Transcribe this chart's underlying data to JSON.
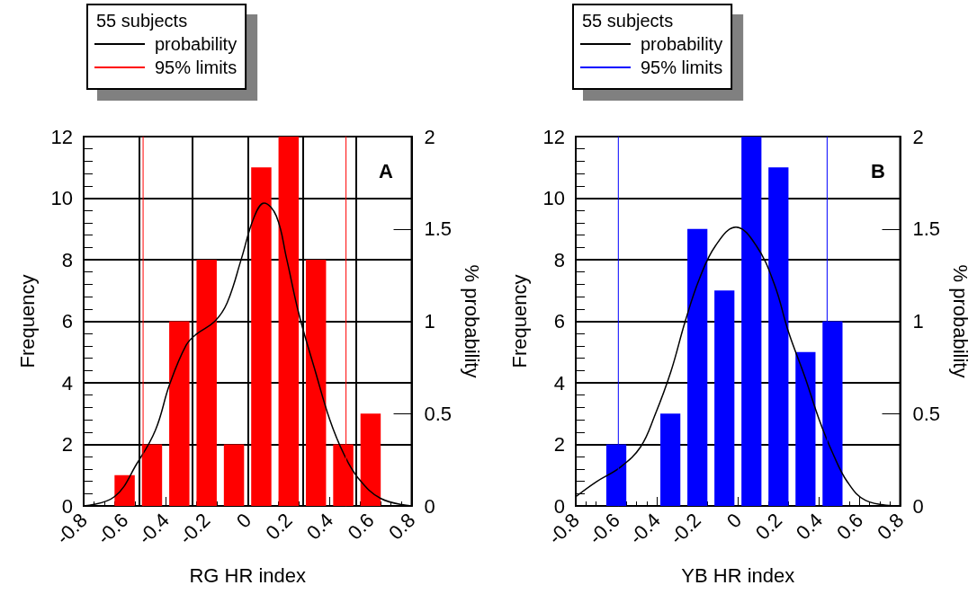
{
  "chart_data": [
    {
      "type": "histogram",
      "title": "A",
      "xlabel": "RG HR index",
      "ylabel": "Frequency",
      "y2label": "% probability",
      "annotations": [
        "55 subjects"
      ],
      "bins": [
        -0.6667,
        -0.5333,
        -0.4,
        -0.2667,
        -0.1333,
        0,
        0.1333,
        0.2667,
        0.4,
        0.5333,
        0.6667
      ],
      "values": [
        1,
        2,
        6,
        8,
        2,
        11,
        12,
        8,
        2,
        3
      ],
      "color": "#ff0000",
      "series": [
        {
          "type": "line",
          "name": "probability",
          "axis": "y2",
          "color": "#000000",
          "x": [
            -0.8,
            -0.65,
            -0.54,
            -0.45,
            -0.38,
            -0.3,
            -0.25,
            -0.16,
            -0.1,
            -0.03,
            0.03,
            0.08,
            0.14,
            0.19,
            0.25,
            0.33,
            0.4,
            0.47,
            0.54,
            0.65,
            0.8
          ],
          "values": [
            0,
            0.05,
            0.23,
            0.41,
            0.66,
            0.87,
            0.93,
            1.0,
            1.1,
            1.34,
            1.56,
            1.64,
            1.57,
            1.34,
            1.04,
            0.73,
            0.47,
            0.28,
            0.15,
            0.04,
            0
          ]
        },
        {
          "type": "line",
          "name": "95% limits",
          "color": "#ff0000",
          "x": [
            -0.51,
            -0.51,
            null,
            0.48,
            0.48
          ],
          "values": [
            0,
            12,
            null,
            12,
            0
          ]
        }
      ],
      "ref_lines": [
        {
          "axis": "x",
          "value": -0.53,
          "color": "#000000"
        },
        {
          "axis": "x",
          "value": -0.27,
          "color": "#000000"
        },
        {
          "axis": "x",
          "value": 0,
          "color": "#000000"
        },
        {
          "axis": "x",
          "value": 0.27,
          "color": "#000000"
        },
        {
          "axis": "x",
          "value": 0.53,
          "color": "#000000"
        }
      ],
      "xlim": [
        -0.8,
        0.8
      ],
      "xticks": [
        -0.8,
        -0.6,
        -0.4,
        -0.2,
        0,
        0.2,
        0.4,
        0.6,
        0.8
      ],
      "ylim": [
        0,
        12
      ],
      "yticks": [
        0,
        2,
        4,
        6,
        8,
        10,
        12
      ],
      "y2lim": [
        0,
        2
      ],
      "y2ticks": [
        0,
        0.5,
        1,
        1.5,
        2
      ],
      "grid": "y",
      "legend": "top left",
      "marker": "none",
      "line_style": "solid"
    },
    {
      "type": "histogram",
      "title": "B",
      "xlabel": "YB HR index",
      "ylabel": "Frequency",
      "y2label": "% probability",
      "annotations": [
        "55 subjects"
      ],
      "bins": [
        -0.6667,
        -0.5333,
        -0.4,
        -0.2667,
        -0.1333,
        0,
        0.1333,
        0.2667,
        0.4,
        0.5333
      ],
      "values": [
        2,
        0,
        3,
        9,
        7,
        12,
        11,
        5,
        6
      ],
      "color": "#0000ff",
      "series": [
        {
          "type": "line",
          "name": "probability",
          "axis": "y2",
          "color": "#000000",
          "x": [
            -0.8,
            -0.7,
            -0.58,
            -0.48,
            -0.41,
            -0.33,
            -0.26,
            -0.19,
            -0.11,
            -0.01,
            0.09,
            0.18,
            0.25,
            0.33,
            0.4,
            0.47,
            0.54,
            0.63,
            0.79
          ],
          "values": [
            0.05,
            0.13,
            0.21,
            0.32,
            0.49,
            0.73,
            1.0,
            1.23,
            1.41,
            1.51,
            1.41,
            1.2,
            0.94,
            0.7,
            0.47,
            0.28,
            0.13,
            0.03,
            0
          ]
        },
        {
          "type": "line",
          "name": "95% limits",
          "color": "#0000ff",
          "x": [
            -0.59,
            -0.59,
            null,
            0.44,
            0.44
          ],
          "values": [
            0,
            12,
            null,
            12,
            0
          ]
        }
      ],
      "xlim": [
        -0.8,
        0.8
      ],
      "xticks": [
        -0.8,
        -0.6,
        -0.4,
        -0.2,
        0,
        0.2,
        0.4,
        0.6,
        0.8
      ],
      "ylim": [
        0,
        12
      ],
      "yticks": [
        0,
        2,
        4,
        6,
        8,
        10,
        12
      ],
      "y2lim": [
        0,
        2
      ],
      "y2ticks": [
        0,
        0.5,
        1,
        1.5,
        2
      ],
      "grid": "y",
      "legend": "top left",
      "marker": "none",
      "line_style": "solid"
    }
  ]
}
